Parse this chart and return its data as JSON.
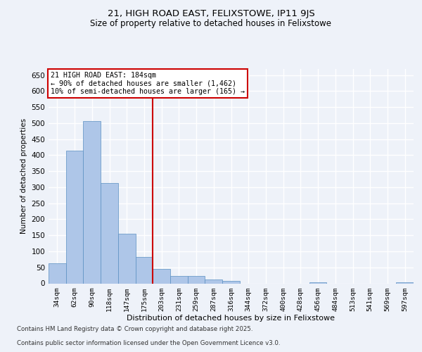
{
  "title1": "21, HIGH ROAD EAST, FELIXSTOWE, IP11 9JS",
  "title2": "Size of property relative to detached houses in Felixstowe",
  "xlabel": "Distribution of detached houses by size in Felixstowe",
  "ylabel": "Number of detached properties",
  "categories": [
    "34sqm",
    "62sqm",
    "90sqm",
    "118sqm",
    "147sqm",
    "175sqm",
    "203sqm",
    "231sqm",
    "259sqm",
    "287sqm",
    "316sqm",
    "344sqm",
    "372sqm",
    "400sqm",
    "428sqm",
    "456sqm",
    "484sqm",
    "513sqm",
    "541sqm",
    "569sqm",
    "597sqm"
  ],
  "values": [
    62,
    413,
    507,
    312,
    155,
    83,
    46,
    24,
    24,
    11,
    8,
    0,
    0,
    0,
    0,
    4,
    0,
    0,
    0,
    0,
    4
  ],
  "bar_color": "#aec6e8",
  "bar_edge_color": "#5a8fc2",
  "vline_x": 5.5,
  "vline_color": "#cc0000",
  "annotation_text": "21 HIGH ROAD EAST: 184sqm\n← 90% of detached houses are smaller (1,462)\n10% of semi-detached houses are larger (165) →",
  "annotation_box_color": "#cc0000",
  "ylim": [
    0,
    670
  ],
  "yticks": [
    0,
    50,
    100,
    150,
    200,
    250,
    300,
    350,
    400,
    450,
    500,
    550,
    600,
    650
  ],
  "footer_line1": "Contains HM Land Registry data © Crown copyright and database right 2025.",
  "footer_line2": "Contains public sector information licensed under the Open Government Licence v3.0.",
  "bg_color": "#eef2f9",
  "grid_color": "#ffffff"
}
